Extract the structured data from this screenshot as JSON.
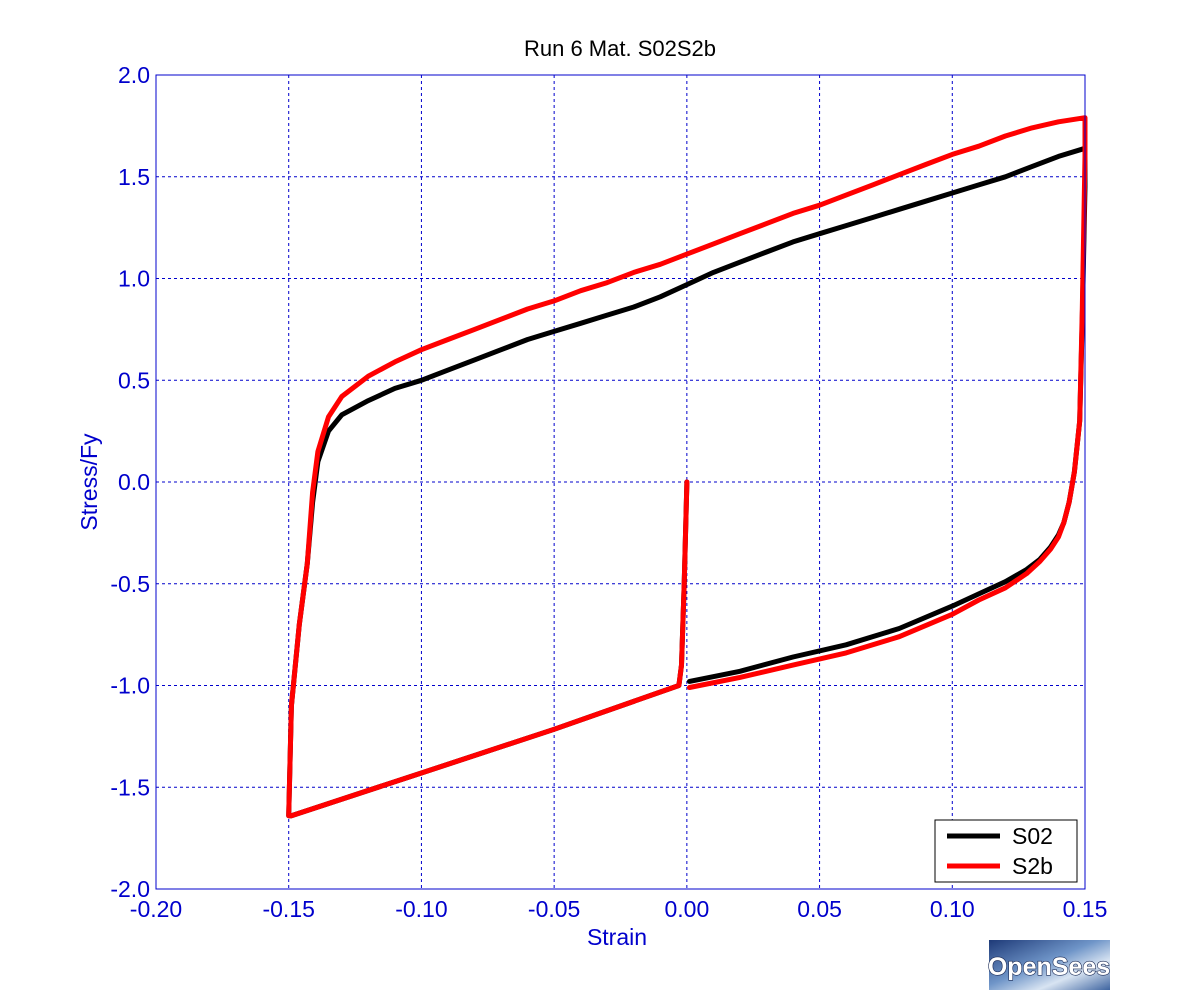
{
  "chart_data": {
    "type": "line",
    "title": "Run 6   Mat. S02S2b",
    "xlabel": "Strain",
    "ylabel": "Stress/Fy",
    "xlim": [
      -0.2,
      0.15
    ],
    "ylim": [
      -2.0,
      2.0
    ],
    "xticks": [
      "-0.20",
      "-0.15",
      "-0.10",
      "-0.05",
      "0.00",
      "0.05",
      "0.10",
      "0.15"
    ],
    "xtick_values": [
      -0.2,
      -0.15,
      -0.1,
      -0.05,
      0.0,
      0.05,
      0.1,
      0.15
    ],
    "yticks": [
      "2.0",
      "1.5",
      "1.0",
      "0.5",
      "0.0",
      "-0.5",
      "-1.0",
      "-1.5",
      "-2.0"
    ],
    "ytick_values": [
      2.0,
      1.5,
      1.0,
      0.5,
      0.0,
      -0.5,
      -1.0,
      -1.5,
      -2.0
    ],
    "grid": true,
    "legend_position": "bottom-right",
    "series": [
      {
        "name": "S02",
        "color": "#000000",
        "x": [
          0.0,
          -0.001,
          -0.002,
          -0.003,
          -0.05,
          -0.1,
          -0.149,
          -0.15,
          -0.149,
          -0.146,
          -0.143,
          -0.141,
          -0.139,
          -0.135,
          -0.13,
          -0.12,
          -0.11,
          -0.1,
          -0.09,
          -0.08,
          -0.07,
          -0.06,
          -0.05,
          -0.04,
          -0.03,
          -0.02,
          -0.01,
          0.0,
          0.01,
          0.02,
          0.03,
          0.04,
          0.05,
          0.06,
          0.07,
          0.08,
          0.09,
          0.1,
          0.11,
          0.12,
          0.13,
          0.14,
          0.15,
          0.15,
          0.149,
          0.148,
          0.146,
          0.144,
          0.142,
          0.14,
          0.137,
          0.133,
          0.128,
          0.12,
          0.11,
          0.1,
          0.08,
          0.06,
          0.04,
          0.02,
          0.001
        ],
        "y": [
          0.0,
          -0.5,
          -0.9,
          -1.0,
          -1.215,
          -1.43,
          -1.64,
          -1.64,
          -1.1,
          -0.7,
          -0.4,
          -0.1,
          0.1,
          0.25,
          0.33,
          0.4,
          0.46,
          0.5,
          0.55,
          0.6,
          0.65,
          0.7,
          0.74,
          0.78,
          0.82,
          0.86,
          0.91,
          0.97,
          1.03,
          1.08,
          1.13,
          1.18,
          1.22,
          1.26,
          1.3,
          1.34,
          1.38,
          1.42,
          1.46,
          1.5,
          1.55,
          1.6,
          1.64,
          1.45,
          0.8,
          0.3,
          0.05,
          -0.1,
          -0.2,
          -0.26,
          -0.32,
          -0.38,
          -0.43,
          -0.49,
          -0.55,
          -0.61,
          -0.72,
          -0.8,
          -0.86,
          -0.93,
          -0.98
        ]
      },
      {
        "name": "S2b",
        "color": "#ff0000",
        "x": [
          0.0,
          -0.001,
          -0.002,
          -0.003,
          -0.05,
          -0.1,
          -0.149,
          -0.15,
          -0.149,
          -0.146,
          -0.143,
          -0.141,
          -0.139,
          -0.135,
          -0.13,
          -0.12,
          -0.11,
          -0.1,
          -0.09,
          -0.08,
          -0.07,
          -0.06,
          -0.05,
          -0.04,
          -0.03,
          -0.02,
          -0.01,
          0.0,
          0.01,
          0.02,
          0.03,
          0.04,
          0.05,
          0.06,
          0.07,
          0.08,
          0.09,
          0.1,
          0.11,
          0.12,
          0.13,
          0.14,
          0.15,
          0.15,
          0.149,
          0.148,
          0.146,
          0.144,
          0.142,
          0.14,
          0.137,
          0.133,
          0.128,
          0.12,
          0.11,
          0.1,
          0.08,
          0.06,
          0.04,
          0.02,
          0.001
        ],
        "y": [
          0.0,
          -0.5,
          -0.9,
          -1.0,
          -1.215,
          -1.43,
          -1.64,
          -1.64,
          -1.1,
          -0.7,
          -0.4,
          -0.05,
          0.15,
          0.32,
          0.42,
          0.52,
          0.59,
          0.65,
          0.7,
          0.75,
          0.8,
          0.85,
          0.89,
          0.94,
          0.98,
          1.03,
          1.07,
          1.12,
          1.17,
          1.22,
          1.27,
          1.32,
          1.36,
          1.41,
          1.46,
          1.51,
          1.56,
          1.61,
          1.65,
          1.7,
          1.74,
          1.77,
          1.79,
          1.6,
          0.85,
          0.3,
          0.05,
          -0.1,
          -0.2,
          -0.27,
          -0.33,
          -0.39,
          -0.45,
          -0.52,
          -0.58,
          -0.65,
          -0.76,
          -0.84,
          -0.9,
          -0.96,
          -1.01
        ]
      }
    ]
  },
  "logo": {
    "text": "OpenSees"
  }
}
